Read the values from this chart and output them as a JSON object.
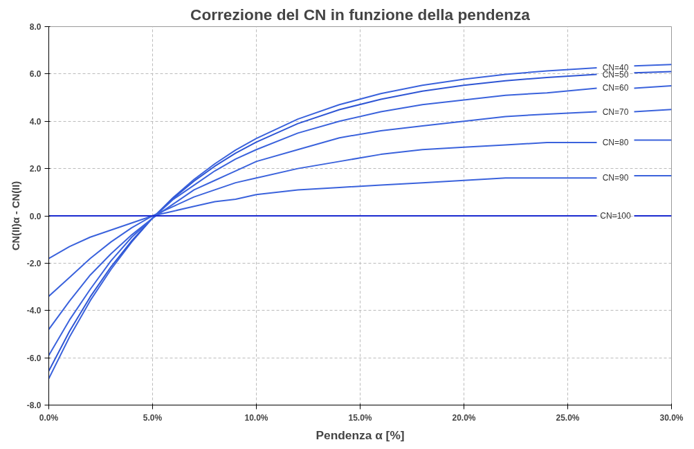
{
  "chart_data": {
    "type": "line",
    "title": "Correzione del CN in funzione della pendenza",
    "xlabel": "Pendenza α [%]",
    "ylabel": "CN(II)α - CN(II)",
    "x": [
      0,
      1,
      2,
      3,
      4,
      5,
      6,
      7,
      8,
      9,
      10,
      12,
      14,
      16,
      18,
      20,
      22,
      24,
      26.4,
      27.3,
      28.2,
      30
    ],
    "series": [
      {
        "name": "CN=40",
        "color": "#3a62dc",
        "values": [
          -6.88,
          -5.12,
          -3.58,
          -2.26,
          -1.1,
          -0.09,
          0.78,
          1.54,
          2.2,
          2.78,
          3.27,
          4.09,
          4.7,
          5.17,
          5.52,
          5.78,
          5.98,
          6.13,
          6.26,
          null,
          6.34,
          6.4
        ]
      },
      {
        "name": "CN=50",
        "color": "#2e55d4",
        "values": [
          -6.56,
          -4.88,
          -3.42,
          -2.15,
          -1.05,
          -0.09,
          0.74,
          1.47,
          2.1,
          2.65,
          3.12,
          3.9,
          4.49,
          4.93,
          5.27,
          5.52,
          5.71,
          5.85,
          5.98,
          null,
          6.05,
          6.1
        ]
      },
      {
        "name": "CN=60",
        "color": "#3a62dc",
        "values": [
          -5.9,
          -4.4,
          -3.1,
          -1.9,
          -0.9,
          -0.1,
          0.7,
          1.3,
          1.9,
          2.4,
          2.8,
          3.5,
          4.0,
          4.4,
          4.7,
          4.9,
          5.1,
          5.2,
          5.4,
          null,
          5.4,
          5.5
        ]
      },
      {
        "name": "CN=70",
        "color": "#3a62dc",
        "values": [
          -4.8,
          -3.6,
          -2.5,
          -1.6,
          -0.8,
          -0.1,
          0.5,
          1.1,
          1.5,
          1.9,
          2.3,
          2.8,
          3.3,
          3.6,
          3.8,
          4.0,
          4.2,
          4.3,
          4.4,
          null,
          4.4,
          4.5
        ]
      },
      {
        "name": "CN=80",
        "color": "#3a62dc",
        "values": [
          -3.4,
          -2.6,
          -1.8,
          -1.1,
          -0.5,
          0.0,
          0.4,
          0.8,
          1.1,
          1.4,
          1.6,
          2.0,
          2.3,
          2.6,
          2.8,
          2.9,
          3.0,
          3.1,
          3.1,
          null,
          3.2,
          3.2
        ]
      },
      {
        "name": "CN=90",
        "color": "#3a62dc",
        "values": [
          -1.8,
          -1.3,
          -0.9,
          -0.6,
          -0.3,
          0.0,
          0.2,
          0.4,
          0.6,
          0.7,
          0.9,
          1.1,
          1.2,
          1.3,
          1.4,
          1.5,
          1.6,
          1.6,
          1.6,
          null,
          1.7,
          1.7
        ]
      },
      {
        "name": "CN=100",
        "color": "#1a2ad0",
        "values": [
          0,
          0,
          0,
          0,
          0,
          0,
          0,
          0,
          0,
          0,
          0,
          0,
          0,
          0,
          0,
          0,
          0,
          0,
          0,
          null,
          0,
          0
        ]
      }
    ],
    "xlim": [
      0,
      30
    ],
    "xticks": [
      {
        "value": 0,
        "label": "0.0%"
      },
      {
        "value": 5,
        "label": "5.0%"
      },
      {
        "value": 10,
        "label": "10.0%"
      },
      {
        "value": 15,
        "label": "15.0%"
      },
      {
        "value": 20,
        "label": "20.0%"
      },
      {
        "value": 25,
        "label": "25.0%"
      },
      {
        "value": 30,
        "label": "30.0%"
      }
    ],
    "ylim": [
      -8,
      8
    ],
    "yticks": [
      {
        "value": -8,
        "label": "-8.0"
      },
      {
        "value": -6,
        "label": "-6.0"
      },
      {
        "value": -4,
        "label": "-4.0"
      },
      {
        "value": -2,
        "label": "-2.0"
      },
      {
        "value": 0,
        "label": "0.0"
      },
      {
        "value": 2,
        "label": "2.0"
      },
      {
        "value": 4,
        "label": "4.0"
      },
      {
        "value": 6,
        "label": "6.0"
      },
      {
        "value": 8,
        "label": "8.0"
      }
    ],
    "grid": true,
    "marker": "none",
    "line_style": "solid"
  }
}
